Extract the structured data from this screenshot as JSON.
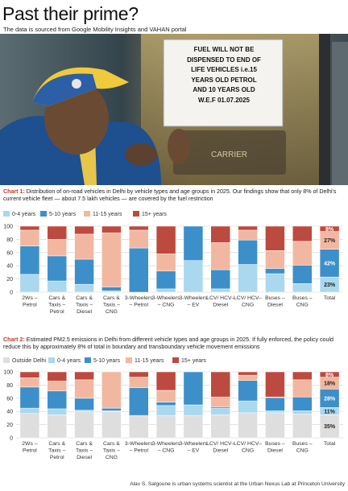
{
  "title": "Past their prime?",
  "subtitle": "The data is sourced from Google Mobility Insights and VAHAN portal",
  "photo": {
    "sign_lines": [
      "FUEL WILL NOT BE",
      "DISPENSED TO END OF",
      "LIFE  VEHICLES  i.e.15",
      "YEARS OLD PETROL",
      "AND 10 YEARS OLD",
      "W.E.F 01.07.2025"
    ],
    "pump_text": "CARRIER"
  },
  "colors": {
    "title_accent": "#c0392b",
    "photo_bg": "#2a3a46"
  },
  "chart_data": [
    {
      "type": "bar",
      "stacked": true,
      "label": "Chart 1:",
      "caption": "Distribution of on-road vehicles in Delhi by vehicle types and age groups in 2025. Our findings show that only 8% of Delhi's current vehicle fleet — about 7.5 lakh vehicles — are covered by the fuel restriction",
      "categories": [
        "2Ws – Petrol",
        "Cars & Taxis – Petrol",
        "Cars & Taxis – Diesel",
        "Cars & Taxis – CNG",
        "3-Wheelers – Petrol",
        "3-Wheelers – CNG",
        "3-Wheelers – EV",
        "LCV/ HCV– Diesel",
        "LCV/ HCV– CNG",
        "Buses – Diesel",
        "Buses – CNG",
        "Total"
      ],
      "series": [
        {
          "name": "0-4 years",
          "color": "#a9d8ef",
          "values": [
            27,
            17,
            12,
            2,
            0,
            5,
            48,
            5,
            42,
            28,
            13,
            23
          ]
        },
        {
          "name": "5-10 years",
          "color": "#3d8fc9",
          "values": [
            43,
            38,
            38,
            6,
            67,
            27,
            52,
            29,
            37,
            8,
            28,
            42
          ]
        },
        {
          "name": "11-15 years",
          "color": "#f2b7a0",
          "values": [
            24,
            25,
            38,
            82,
            27,
            26,
            0,
            41,
            15,
            27,
            36,
            27
          ]
        },
        {
          "name": "15+ years",
          "color": "#bd4a3f",
          "values": [
            6,
            20,
            12,
            10,
            6,
            42,
            0,
            25,
            6,
            37,
            23,
            8
          ]
        }
      ],
      "data_labels": [
        {
          "category": "Total",
          "series": "15+ years",
          "text": "8%"
        },
        {
          "category": "Total",
          "series": "11-15 years",
          "text": "27%"
        },
        {
          "category": "Total",
          "series": "5-10 years",
          "text": "42%"
        },
        {
          "category": "Total",
          "series": "0-4 years",
          "text": "23%"
        }
      ],
      "yticks": [
        0,
        20,
        40,
        60,
        80,
        100
      ],
      "ylim": [
        0,
        100
      ],
      "grid": true,
      "legend_position": "top-left"
    },
    {
      "type": "bar",
      "stacked": true,
      "label": "Chart 2:",
      "caption": "Estimated PM2.5 emissions in Delhi from different vehicle types and age groups in 2025. If fully enforced, the policy could reduce this by approximately 8% of total in boundary and transboundary vehicle movement emissions",
      "categories": [
        "2Ws – Petrol",
        "Cars & Taxis – Petrol",
        "Cars & Taxis – Diesel",
        "Cars & Taxis – CNG",
        "3-Wheelers – Petrol",
        "3-Wheelers – CNG",
        "3-Wheelers – EV",
        "LCV/ HCV– Diesel",
        "LCV/ HCV– CNG",
        "Buses – Diesel",
        "Buses – CNG",
        "Total"
      ],
      "series": [
        {
          "name": "Outside Delhi",
          "color": "#dedede",
          "values": [
            37,
            35,
            40,
            40,
            34,
            34,
            34,
            35,
            38,
            38,
            36,
            35
          ]
        },
        {
          "name": "0-4 years",
          "color": "#a9d8ef",
          "values": [
            8,
            9,
            2,
            1,
            0,
            15,
            16,
            10,
            18,
            3,
            5,
            11
          ]
        },
        {
          "name": "5-10 years",
          "color": "#3d8fc9",
          "values": [
            32,
            27,
            18,
            4,
            42,
            5,
            50,
            2,
            31,
            20,
            21,
            28
          ]
        },
        {
          "name": "11-15 years",
          "color": "#f2b7a0",
          "values": [
            14,
            15,
            28,
            55,
            16,
            18,
            0,
            15,
            8,
            1,
            26,
            18
          ]
        },
        {
          "name": "15+ years",
          "color": "#bd4a3f",
          "values": [
            9,
            14,
            12,
            0,
            8,
            28,
            0,
            38,
            5,
            38,
            12,
            8
          ]
        }
      ],
      "data_labels": [
        {
          "category": "Total",
          "series": "15+ years",
          "text": "8%"
        },
        {
          "category": "Total",
          "series": "11-15 years",
          "text": "18%"
        },
        {
          "category": "Total",
          "series": "5-10 years",
          "text": "28%"
        },
        {
          "category": "Total",
          "series": "0-4 years",
          "text": "11%"
        },
        {
          "category": "Total",
          "series": "Outside Delhi",
          "text": "35%"
        }
      ],
      "yticks": [
        0,
        20,
        40,
        60,
        80,
        100
      ],
      "ylim": [
        0,
        100
      ],
      "grid": true,
      "legend_position": "top-left"
    }
  ],
  "credit": "Alav S. Salgoune is urban systems scientist at the Urban Nexus Lab at Princeton University"
}
